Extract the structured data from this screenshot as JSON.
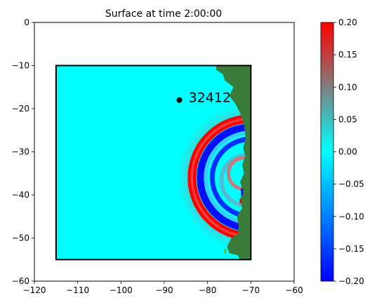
{
  "chart_data": {
    "type": "heatmap",
    "title": "Surface at time 2:00:00",
    "xlabel": "",
    "ylabel": "",
    "xlim": [
      -120,
      -60
    ],
    "ylim": [
      -60,
      0
    ],
    "xticks": [
      "−120",
      "−110",
      "−100",
      "−90",
      "−80",
      "−70",
      "−60"
    ],
    "yticks": [
      "0",
      "−10",
      "−20",
      "−30",
      "−40",
      "−50",
      "−60"
    ],
    "xtick_values": [
      -120,
      -110,
      -100,
      -90,
      -80,
      -70,
      -60
    ],
    "ytick_values": [
      0,
      -10,
      -20,
      -30,
      -40,
      -50,
      -60
    ],
    "domain_box": {
      "x": [
        -115,
        -70
      ],
      "y": [
        -55,
        -10
      ]
    },
    "gauge": {
      "label": "32412",
      "x": -86.5,
      "y": -18
    },
    "colorbar": {
      "range": [
        -0.2,
        0.2
      ],
      "tick_values": [
        0.2,
        0.15,
        0.1,
        0.05,
        0.0,
        -0.05,
        -0.1,
        -0.15,
        -0.2
      ],
      "ticks": [
        "0.20",
        "0.15",
        "0.10",
        "0.05",
        "0.00",
        "−0.05",
        "−0.10",
        "−0.15",
        "−0.20"
      ],
      "colors": [
        "#0000ff",
        "#00ffff",
        "#ff0000"
      ]
    },
    "land_color": "#3a7d3a",
    "background_field_color": "#00ffff"
  }
}
